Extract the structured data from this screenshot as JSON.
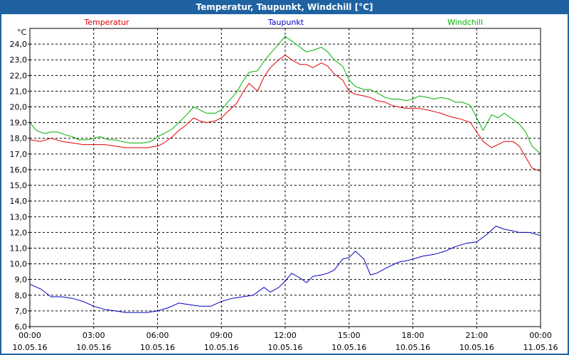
{
  "window": {
    "title": "Temperatur, Taupunkt, Windchill [°C]"
  },
  "chart_data": {
    "type": "line",
    "title": "Temperatur, Taupunkt, Windchill [°C]",
    "xlabel": "",
    "ylabel": "°C",
    "x_unit_hours": true,
    "xlim": [
      0,
      24
    ],
    "ylim": [
      6,
      25
    ],
    "grid": true,
    "y_ticks": [
      "6,0",
      "7,0",
      "8,0",
      "9,0",
      "10,0",
      "11,0",
      "12,0",
      "13,0",
      "14,0",
      "15,0",
      "16,0",
      "17,0",
      "18,0",
      "19,0",
      "20,0",
      "21,0",
      "22,0",
      "23,0",
      "24,0"
    ],
    "x_ticks": [
      {
        "time": "00:00",
        "date": "10.05.16"
      },
      {
        "time": "03:00",
        "date": "10.05.16"
      },
      {
        "time": "06:00",
        "date": "10.05.16"
      },
      {
        "time": "09:00",
        "date": "10.05.16"
      },
      {
        "time": "12:00",
        "date": "10.05.16"
      },
      {
        "time": "15:00",
        "date": "10.05.16"
      },
      {
        "time": "18:00",
        "date": "10.05.16"
      },
      {
        "time": "21:00",
        "date": "10.05.16"
      },
      {
        "time": "00:00",
        "date": "11.05.16"
      }
    ],
    "legend": [
      "Temperatur",
      "Taupunkt",
      "Windchill"
    ],
    "series": [
      {
        "name": "Windchill",
        "color": "#00b000",
        "points": [
          [
            0,
            19.0
          ],
          [
            0.3,
            18.5
          ],
          [
            0.7,
            18.3
          ],
          [
            1.0,
            18.4
          ],
          [
            1.3,
            18.4
          ],
          [
            1.7,
            18.2
          ],
          [
            2.0,
            18.1
          ],
          [
            2.3,
            17.9
          ],
          [
            2.7,
            17.9
          ],
          [
            3.0,
            18.0
          ],
          [
            3.3,
            18.1
          ],
          [
            3.7,
            17.9
          ],
          [
            4.0,
            17.9
          ],
          [
            4.3,
            17.8
          ],
          [
            4.7,
            17.7
          ],
          [
            5.0,
            17.7
          ],
          [
            5.3,
            17.7
          ],
          [
            5.7,
            17.8
          ],
          [
            6.0,
            18.1
          ],
          [
            6.3,
            18.3
          ],
          [
            6.7,
            18.6
          ],
          [
            7.0,
            19.0
          ],
          [
            7.3,
            19.4
          ],
          [
            7.7,
            20.0
          ],
          [
            8.0,
            19.8
          ],
          [
            8.3,
            19.6
          ],
          [
            8.7,
            19.6
          ],
          [
            9.0,
            19.8
          ],
          [
            9.3,
            20.3
          ],
          [
            9.7,
            20.9
          ],
          [
            10.0,
            21.6
          ],
          [
            10.3,
            22.2
          ],
          [
            10.7,
            22.3
          ],
          [
            11.0,
            22.9
          ],
          [
            11.3,
            23.4
          ],
          [
            11.7,
            24.0
          ],
          [
            12.0,
            24.5
          ],
          [
            12.3,
            24.2
          ],
          [
            12.7,
            23.8
          ],
          [
            13.0,
            23.5
          ],
          [
            13.3,
            23.6
          ],
          [
            13.7,
            23.8
          ],
          [
            14.0,
            23.5
          ],
          [
            14.3,
            23.0
          ],
          [
            14.7,
            22.6
          ],
          [
            15.0,
            21.7
          ],
          [
            15.3,
            21.3
          ],
          [
            15.7,
            21.1
          ],
          [
            16.0,
            21.1
          ],
          [
            16.3,
            20.9
          ],
          [
            16.7,
            20.6
          ],
          [
            17.0,
            20.5
          ],
          [
            17.3,
            20.5
          ],
          [
            17.7,
            20.4
          ],
          [
            18.0,
            20.5
          ],
          [
            18.3,
            20.7
          ],
          [
            18.7,
            20.6
          ],
          [
            19.0,
            20.5
          ],
          [
            19.3,
            20.6
          ],
          [
            19.7,
            20.5
          ],
          [
            20.0,
            20.3
          ],
          [
            20.3,
            20.3
          ],
          [
            20.7,
            20.1
          ],
          [
            21.0,
            19.3
          ],
          [
            21.3,
            18.5
          ],
          [
            21.7,
            19.5
          ],
          [
            22.0,
            19.3
          ],
          [
            22.3,
            19.6
          ],
          [
            22.7,
            19.2
          ],
          [
            23.0,
            18.9
          ],
          [
            23.3,
            18.4
          ],
          [
            23.6,
            17.5
          ],
          [
            24.0,
            17.0
          ]
        ]
      },
      {
        "name": "Temperatur",
        "color": "#e00000",
        "points": [
          [
            0,
            17.9
          ],
          [
            0.5,
            17.8
          ],
          [
            1.0,
            18.0
          ],
          [
            1.5,
            17.8
          ],
          [
            2.0,
            17.7
          ],
          [
            2.5,
            17.6
          ],
          [
            3.0,
            17.6
          ],
          [
            3.5,
            17.6
          ],
          [
            4.0,
            17.5
          ],
          [
            4.5,
            17.4
          ],
          [
            5.0,
            17.4
          ],
          [
            5.5,
            17.4
          ],
          [
            6.0,
            17.5
          ],
          [
            6.3,
            17.7
          ],
          [
            6.7,
            18.1
          ],
          [
            7.0,
            18.5
          ],
          [
            7.3,
            18.8
          ],
          [
            7.7,
            19.3
          ],
          [
            8.0,
            19.1
          ],
          [
            8.3,
            19.0
          ],
          [
            8.7,
            19.1
          ],
          [
            9.0,
            19.3
          ],
          [
            9.3,
            19.7
          ],
          [
            9.7,
            20.2
          ],
          [
            10.0,
            20.9
          ],
          [
            10.3,
            21.5
          ],
          [
            10.7,
            21.0
          ],
          [
            11.0,
            21.9
          ],
          [
            11.3,
            22.5
          ],
          [
            11.7,
            23.0
          ],
          [
            12.0,
            23.3
          ],
          [
            12.3,
            23.0
          ],
          [
            12.7,
            22.7
          ],
          [
            13.0,
            22.7
          ],
          [
            13.3,
            22.5
          ],
          [
            13.7,
            22.8
          ],
          [
            14.0,
            22.6
          ],
          [
            14.3,
            22.1
          ],
          [
            14.7,
            21.7
          ],
          [
            15.0,
            21.0
          ],
          [
            15.3,
            20.8
          ],
          [
            15.7,
            20.7
          ],
          [
            16.0,
            20.6
          ],
          [
            16.3,
            20.4
          ],
          [
            16.7,
            20.3
          ],
          [
            17.0,
            20.1
          ],
          [
            17.3,
            20.0
          ],
          [
            17.7,
            19.9
          ],
          [
            18.0,
            19.9
          ],
          [
            18.3,
            19.9
          ],
          [
            18.7,
            19.8
          ],
          [
            19.0,
            19.7
          ],
          [
            19.3,
            19.6
          ],
          [
            19.7,
            19.4
          ],
          [
            20.0,
            19.3
          ],
          [
            20.3,
            19.2
          ],
          [
            20.7,
            19.0
          ],
          [
            21.0,
            18.4
          ],
          [
            21.3,
            17.8
          ],
          [
            21.7,
            17.4
          ],
          [
            22.0,
            17.6
          ],
          [
            22.3,
            17.8
          ],
          [
            22.7,
            17.8
          ],
          [
            23.0,
            17.5
          ],
          [
            23.3,
            16.8
          ],
          [
            23.6,
            16.1
          ],
          [
            24.0,
            15.9
          ]
        ]
      },
      {
        "name": "Taupunkt",
        "color": "#0000c0",
        "points": [
          [
            0,
            8.7
          ],
          [
            0.5,
            8.4
          ],
          [
            1.0,
            7.9
          ],
          [
            1.5,
            7.9
          ],
          [
            2.0,
            7.8
          ],
          [
            2.5,
            7.6
          ],
          [
            3.0,
            7.3
          ],
          [
            3.5,
            7.1
          ],
          [
            4.0,
            7.0
          ],
          [
            4.5,
            6.9
          ],
          [
            5.0,
            6.9
          ],
          [
            5.5,
            6.9
          ],
          [
            6.0,
            7.0
          ],
          [
            6.5,
            7.2
          ],
          [
            7.0,
            7.5
          ],
          [
            7.5,
            7.4
          ],
          [
            8.0,
            7.3
          ],
          [
            8.5,
            7.3
          ],
          [
            9.0,
            7.6
          ],
          [
            9.5,
            7.8
          ],
          [
            10.0,
            7.9
          ],
          [
            10.5,
            8.0
          ],
          [
            11.0,
            8.5
          ],
          [
            11.3,
            8.2
          ],
          [
            11.7,
            8.5
          ],
          [
            12.0,
            8.9
          ],
          [
            12.3,
            9.4
          ],
          [
            12.7,
            9.1
          ],
          [
            13.0,
            8.8
          ],
          [
            13.3,
            9.2
          ],
          [
            13.7,
            9.3
          ],
          [
            14.0,
            9.4
          ],
          [
            14.3,
            9.6
          ],
          [
            14.7,
            10.3
          ],
          [
            15.0,
            10.4
          ],
          [
            15.3,
            10.8
          ],
          [
            15.7,
            10.3
          ],
          [
            16.0,
            9.3
          ],
          [
            16.3,
            9.4
          ],
          [
            16.7,
            9.7
          ],
          [
            17.0,
            9.9
          ],
          [
            17.3,
            10.1
          ],
          [
            17.7,
            10.2
          ],
          [
            18.0,
            10.3
          ],
          [
            18.5,
            10.5
          ],
          [
            19.0,
            10.6
          ],
          [
            19.5,
            10.8
          ],
          [
            20.0,
            11.1
          ],
          [
            20.5,
            11.3
          ],
          [
            21.0,
            11.4
          ],
          [
            21.5,
            11.9
          ],
          [
            21.9,
            12.4
          ],
          [
            22.3,
            12.2
          ],
          [
            22.7,
            12.1
          ],
          [
            23.0,
            12.0
          ],
          [
            23.5,
            12.0
          ],
          [
            24.0,
            11.8
          ]
        ]
      }
    ]
  }
}
